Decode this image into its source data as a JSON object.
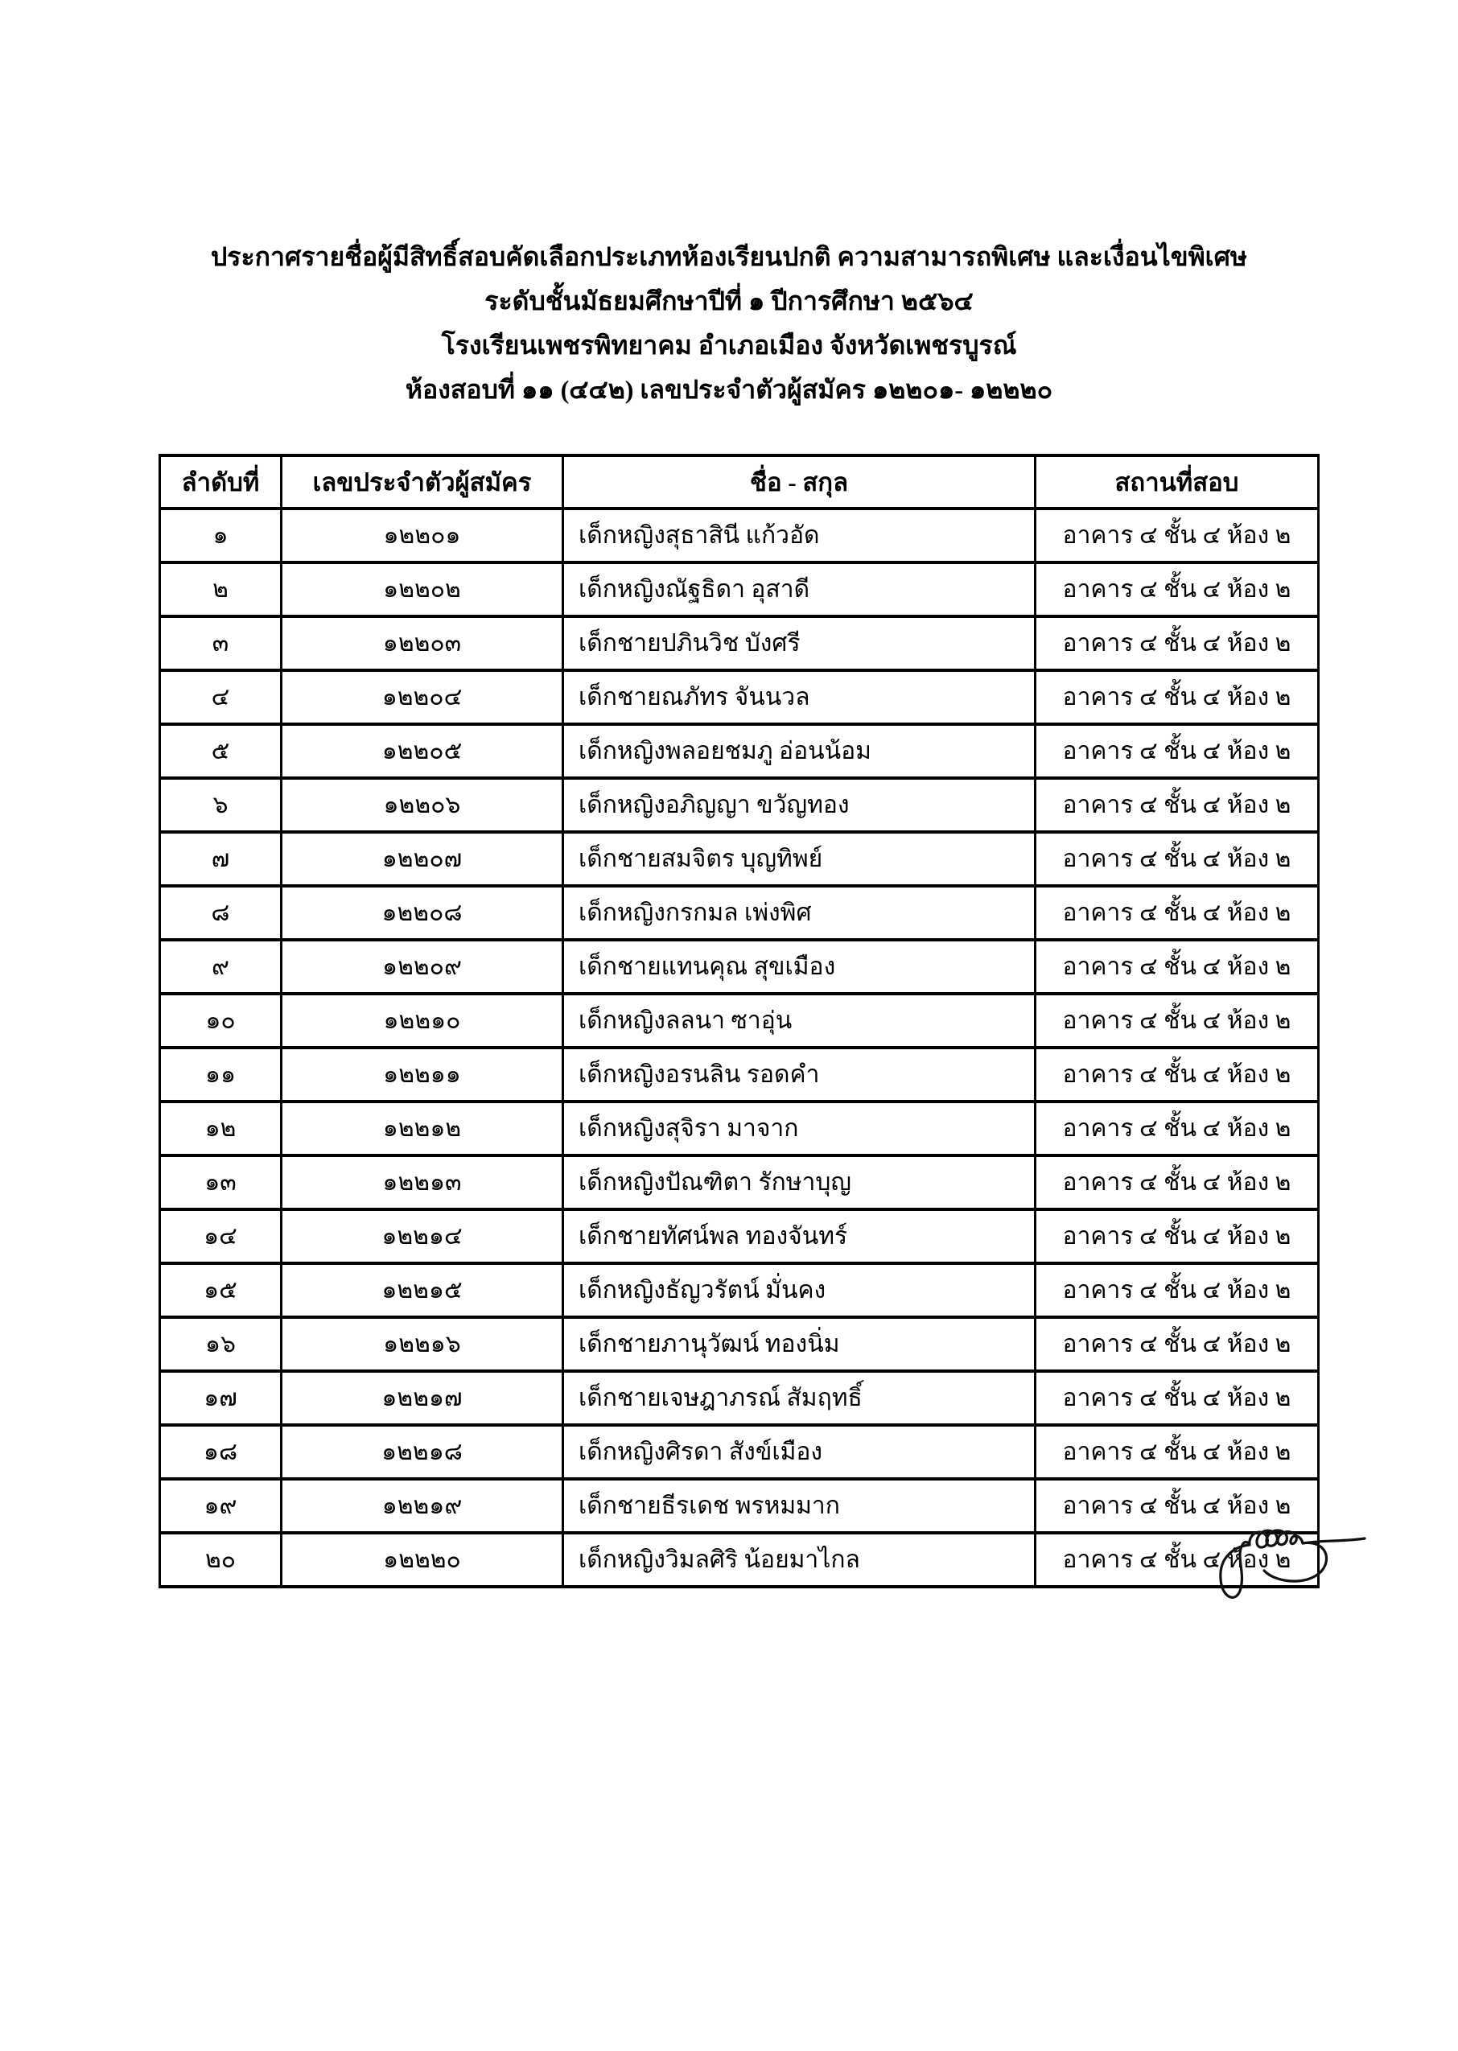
{
  "document": {
    "title_lines": [
      "ประกาศรายชื่อผู้มีสิทธิ์สอบคัดเลือกประเภทห้องเรียนปกติ ความสามารถพิเศษ และเงื่อนไขพิเศษ",
      "ระดับชั้นมัธยมศึกษาปีที่ ๑ ปีการศึกษา ๒๕๖๔",
      "โรงเรียนเพชรพิทยาคม อำเภอเมือง จังหวัดเพชรบูรณ์",
      "ห้องสอบที่ ๑๑ (๔๔๒) เลขประจำตัวผู้สมัคร ๑๒๒๐๑- ๑๒๒๒๐"
    ]
  },
  "table": {
    "columns": [
      "ลำดับที่",
      "เลขประจำตัวผู้สมัคร",
      "ชื่อ - สกุล",
      "สถานที่สอบ"
    ],
    "rows": [
      {
        "order": "๑",
        "candidate_id": "๑๒๒๐๑",
        "name": "เด็กหญิงสุธาสินี แก้วอัด",
        "location": "อาคาร ๔ ชั้น ๔ ห้อง ๒"
      },
      {
        "order": "๒",
        "candidate_id": "๑๒๒๐๒",
        "name": "เด็กหญิงณัฐธิดา อุสาดี",
        "location": "อาคาร ๔ ชั้น ๔ ห้อง ๒"
      },
      {
        "order": "๓",
        "candidate_id": "๑๒๒๐๓",
        "name": "เด็กชายปภินวิช บังศรี",
        "location": "อาคาร ๔ ชั้น ๔ ห้อง ๒"
      },
      {
        "order": "๔",
        "candidate_id": "๑๒๒๐๔",
        "name": "เด็กชายณภัทร จันนวล",
        "location": "อาคาร ๔ ชั้น ๔ ห้อง ๒"
      },
      {
        "order": "๕",
        "candidate_id": "๑๒๒๐๕",
        "name": "เด็กหญิงพลอยชมภู อ่อนน้อม",
        "location": "อาคาร ๔ ชั้น ๔ ห้อง ๒"
      },
      {
        "order": "๖",
        "candidate_id": "๑๒๒๐๖",
        "name": "เด็กหญิงอภิญญา ขวัญทอง",
        "location": "อาคาร ๔ ชั้น ๔ ห้อง ๒"
      },
      {
        "order": "๗",
        "candidate_id": "๑๒๒๐๗",
        "name": "เด็กชายสมจิตร บุญทิพย์",
        "location": "อาคาร ๔ ชั้น ๔ ห้อง ๒"
      },
      {
        "order": "๘",
        "candidate_id": "๑๒๒๐๘",
        "name": "เด็กหญิงกรกมล เพ่งพิศ",
        "location": "อาคาร ๔ ชั้น ๔ ห้อง ๒"
      },
      {
        "order": "๙",
        "candidate_id": "๑๒๒๐๙",
        "name": "เด็กชายแทนคุณ สุขเมือง",
        "location": "อาคาร ๔ ชั้น ๔ ห้อง ๒"
      },
      {
        "order": "๑๐",
        "candidate_id": "๑๒๒๑๐",
        "name": "เด็กหญิงลลนา ซาอุ่น",
        "location": "อาคาร ๔ ชั้น ๔ ห้อง ๒"
      },
      {
        "order": "๑๑",
        "candidate_id": "๑๒๒๑๑",
        "name": "เด็กหญิงอรนลิน รอดคำ",
        "location": "อาคาร ๔ ชั้น ๔ ห้อง ๒"
      },
      {
        "order": "๑๒",
        "candidate_id": "๑๒๒๑๒",
        "name": "เด็กหญิงสุจิรา มาจาก",
        "location": "อาคาร ๔ ชั้น ๔ ห้อง ๒"
      },
      {
        "order": "๑๓",
        "candidate_id": "๑๒๒๑๓",
        "name": "เด็กหญิงปัณฑิตา รักษาบุญ",
        "location": "อาคาร ๔ ชั้น ๔ ห้อง ๒"
      },
      {
        "order": "๑๔",
        "candidate_id": "๑๒๒๑๔",
        "name": "เด็กชายทัศน์พล ทองจันทร์",
        "location": "อาคาร ๔ ชั้น ๔ ห้อง ๒"
      },
      {
        "order": "๑๕",
        "candidate_id": "๑๒๒๑๕",
        "name": "เด็กหญิงธัญวรัตน์ มั่นคง",
        "location": "อาคาร ๔ ชั้น ๔ ห้อง ๒"
      },
      {
        "order": "๑๖",
        "candidate_id": "๑๒๒๑๖",
        "name": "เด็กชายภานุวัฒน์ ทองนิ่ม",
        "location": "อาคาร ๔ ชั้น ๔ ห้อง ๒"
      },
      {
        "order": "๑๗",
        "candidate_id": "๑๒๒๑๗",
        "name": "เด็กชายเจษฎาภรณ์ สัมฤทธิ์",
        "location": "อาคาร ๔ ชั้น ๔ ห้อง ๒"
      },
      {
        "order": "๑๘",
        "candidate_id": "๑๒๒๑๘",
        "name": "เด็กหญิงศิรดา สังข์เมือง",
        "location": "อาคาร ๔ ชั้น ๔ ห้อง ๒"
      },
      {
        "order": "๑๙",
        "candidate_id": "๑๒๒๑๙",
        "name": "เด็กชายธีรเดช พรหมมาก",
        "location": "อาคาร ๔ ชั้น ๔ ห้อง ๒"
      },
      {
        "order": "๒๐",
        "candidate_id": "๑๒๒๒๐",
        "name": "เด็กหญิงวิมลศิริ น้อยมาไกล",
        "location": "อาคาร ๔ ชั้น ๔ ห้อง ๒"
      }
    ]
  },
  "icons": {
    "signature": "handwritten-signature-scribble"
  },
  "colors": {
    "background": "#ffffff",
    "text": "#000000",
    "border": "#000000"
  }
}
